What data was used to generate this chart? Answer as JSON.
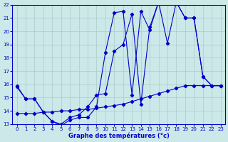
{
  "xlabel": "Graphe des températures (°c)",
  "bg_color": "#cce8e8",
  "line_color": "#0000cc",
  "grid_color": "#aacccc",
  "xlim": [
    -0.5,
    23.5
  ],
  "ylim": [
    13,
    22
  ],
  "yticks": [
    13,
    14,
    15,
    16,
    17,
    18,
    19,
    20,
    21,
    22
  ],
  "xticks": [
    0,
    1,
    2,
    3,
    4,
    5,
    6,
    7,
    8,
    9,
    10,
    11,
    12,
    13,
    14,
    15,
    16,
    17,
    18,
    19,
    20,
    21,
    22,
    23
  ],
  "series": [
    {
      "x": [
        0,
        1,
        2,
        3,
        4,
        5,
        6,
        7,
        8,
        9,
        10,
        11,
        12,
        13,
        14,
        15,
        16,
        17,
        18,
        19,
        20,
        21,
        22,
        23
      ],
      "y": [
        15.8,
        14.9,
        14.9,
        13.9,
        13.2,
        12.9,
        13.3,
        13.5,
        13.5,
        14.3,
        18.4,
        21.4,
        21.5,
        15.2,
        21.5,
        20.1,
        22.2,
        19.1,
        22.2,
        21.0,
        21.0,
        16.6,
        15.9,
        15.9
      ]
    },
    {
      "x": [
        0,
        1,
        2,
        3,
        4,
        5,
        6,
        7,
        8,
        9,
        10,
        11,
        12,
        13,
        14,
        15,
        16,
        17,
        18,
        19,
        20,
        21,
        22,
        23
      ],
      "y": [
        15.9,
        14.9,
        14.9,
        13.9,
        13.2,
        13.0,
        13.5,
        13.7,
        14.3,
        15.2,
        15.3,
        18.5,
        19.0,
        21.3,
        14.5,
        20.3,
        22.2,
        22.3,
        22.2,
        21.0,
        21.0,
        16.6,
        15.9,
        15.9
      ]
    },
    {
      "x": [
        0,
        1,
        2,
        3,
        4,
        5,
        6,
        7,
        8,
        9,
        10,
        11,
        12,
        13,
        14,
        15,
        16,
        17,
        18,
        19,
        20,
        21,
        22,
        23
      ],
      "y": [
        13.8,
        13.8,
        13.8,
        13.9,
        13.9,
        14.0,
        14.0,
        14.1,
        14.1,
        14.2,
        14.3,
        14.4,
        14.5,
        14.7,
        14.9,
        15.1,
        15.3,
        15.5,
        15.7,
        15.9,
        15.9,
        15.9,
        15.9,
        15.9
      ]
    }
  ]
}
